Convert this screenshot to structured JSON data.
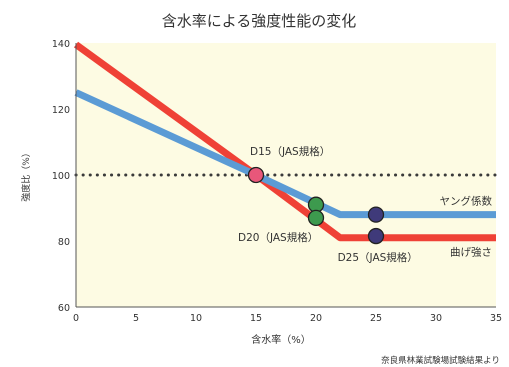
{
  "chart_data": {
    "type": "line",
    "title": "含水率による強度性能の変化",
    "xlabel": "含水率（%）",
    "ylabel": "強度比（%）",
    "xlim": [
      0,
      35
    ],
    "ylim": [
      60,
      140
    ],
    "xticks": [
      0,
      5,
      10,
      15,
      20,
      25,
      30,
      35
    ],
    "yticks": [
      60,
      80,
      100,
      120,
      140
    ],
    "grid": false,
    "reference_line": {
      "y": 100,
      "style": "dotted"
    },
    "series": [
      {
        "name": "ヤング係数",
        "color": "#5b9bd5",
        "x": [
          0,
          15,
          22,
          35
        ],
        "y": [
          125,
          100,
          88,
          88
        ]
      },
      {
        "name": "曲げ強さ",
        "color": "#ef4136",
        "x": [
          0,
          15,
          22,
          35
        ],
        "y": [
          139.5,
          100,
          81,
          81
        ]
      }
    ],
    "markers": [
      {
        "x": 15,
        "y": 100,
        "color": "#e8577a"
      },
      {
        "x": 20,
        "y": 91,
        "color": "#3d9a4e"
      },
      {
        "x": 20,
        "y": 87,
        "color": "#3d9a4e"
      },
      {
        "x": 25,
        "y": 88,
        "color": "#3f3a7a"
      },
      {
        "x": 25,
        "y": 81.5,
        "color": "#3f3a7a"
      }
    ],
    "annotations": [
      {
        "text": "D15（JAS規格）",
        "x": 14.5,
        "y": 106
      },
      {
        "text": "D20（JAS規格）",
        "x": 13.5,
        "y": 80
      },
      {
        "text": "D25（JAS規格）",
        "x": 21.8,
        "y": 74
      }
    ],
    "source": "奈良県林業試験場試験結果より"
  },
  "colors": {
    "plot_background": "#fdfbe3",
    "axis": "#555555",
    "reference_line": "#3a3a3a"
  }
}
